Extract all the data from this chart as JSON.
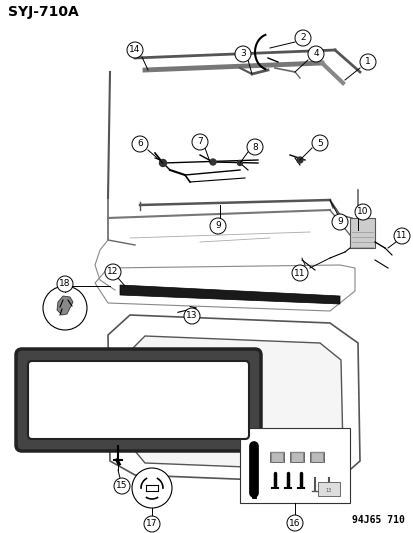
{
  "title": "SYJ-710A",
  "footer": "94J65 710",
  "bg_color": "#ffffff",
  "title_fontsize": 10,
  "footer_fontsize": 7
}
